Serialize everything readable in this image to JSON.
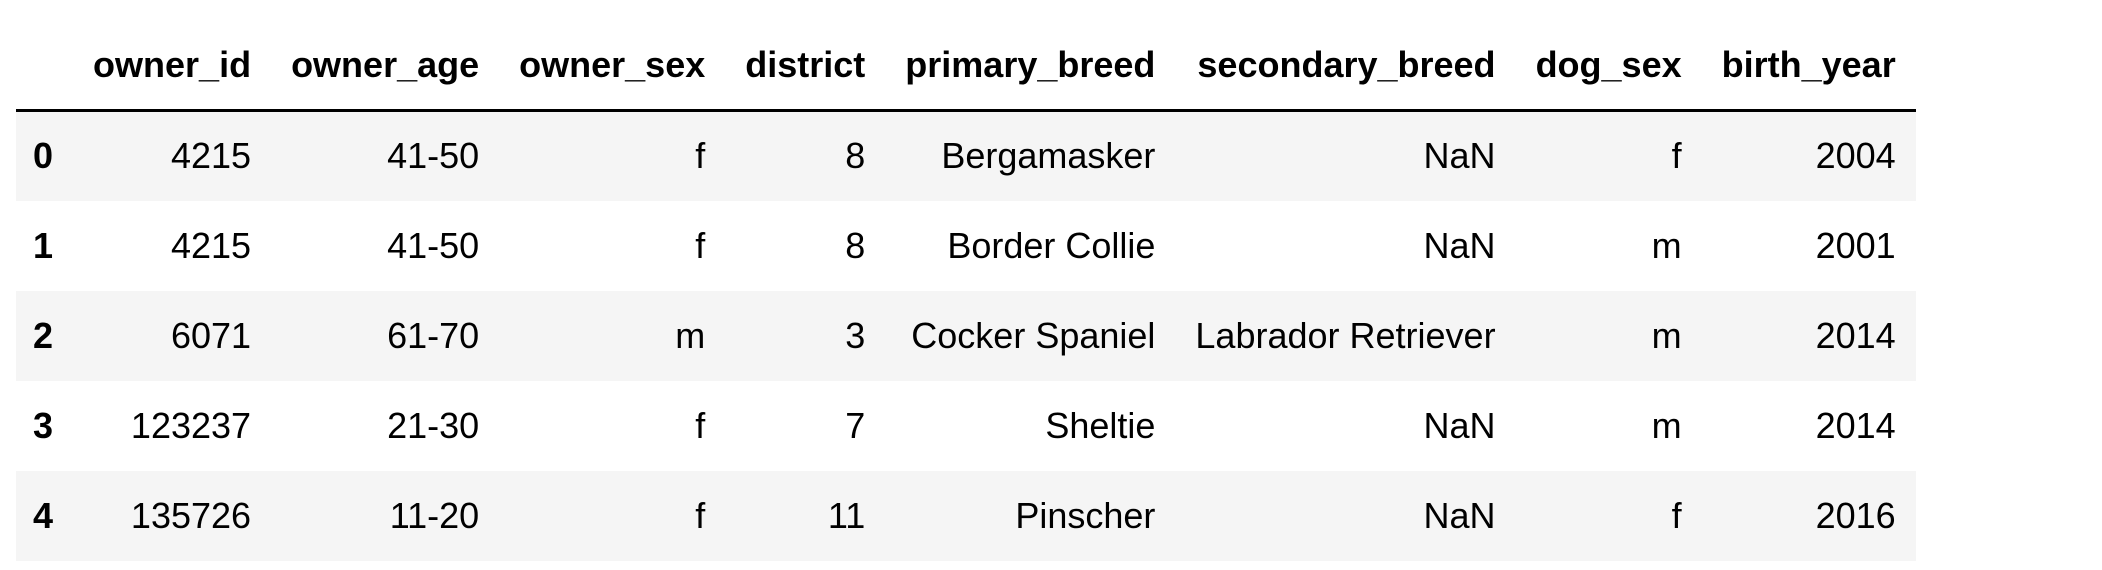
{
  "table": {
    "columns": [
      "owner_id",
      "owner_age",
      "owner_sex",
      "district",
      "primary_breed",
      "secondary_breed",
      "dog_sex",
      "birth_year"
    ],
    "rows": [
      {
        "index": "0",
        "cells": [
          "4215",
          "41-50",
          "f",
          "8",
          "Bergamasker",
          "NaN",
          "f",
          "2004"
        ]
      },
      {
        "index": "1",
        "cells": [
          "4215",
          "41-50",
          "f",
          "8",
          "Border Collie",
          "NaN",
          "m",
          "2001"
        ]
      },
      {
        "index": "2",
        "cells": [
          "6071",
          "61-70",
          "m",
          "3",
          "Cocker Spaniel",
          "Labrador Retriever",
          "m",
          "2014"
        ]
      },
      {
        "index": "3",
        "cells": [
          "123237",
          "21-30",
          "f",
          "7",
          "Sheltie",
          "NaN",
          "m",
          "2014"
        ]
      },
      {
        "index": "4",
        "cells": [
          "135726",
          "11-20",
          "f",
          "11",
          "Pinscher",
          "NaN",
          "f",
          "2016"
        ]
      }
    ]
  },
  "colors": {
    "row_stripe": "#f5f5f5",
    "row_plain": "#ffffff",
    "header_rule": "#000000",
    "text": "#000000"
  }
}
